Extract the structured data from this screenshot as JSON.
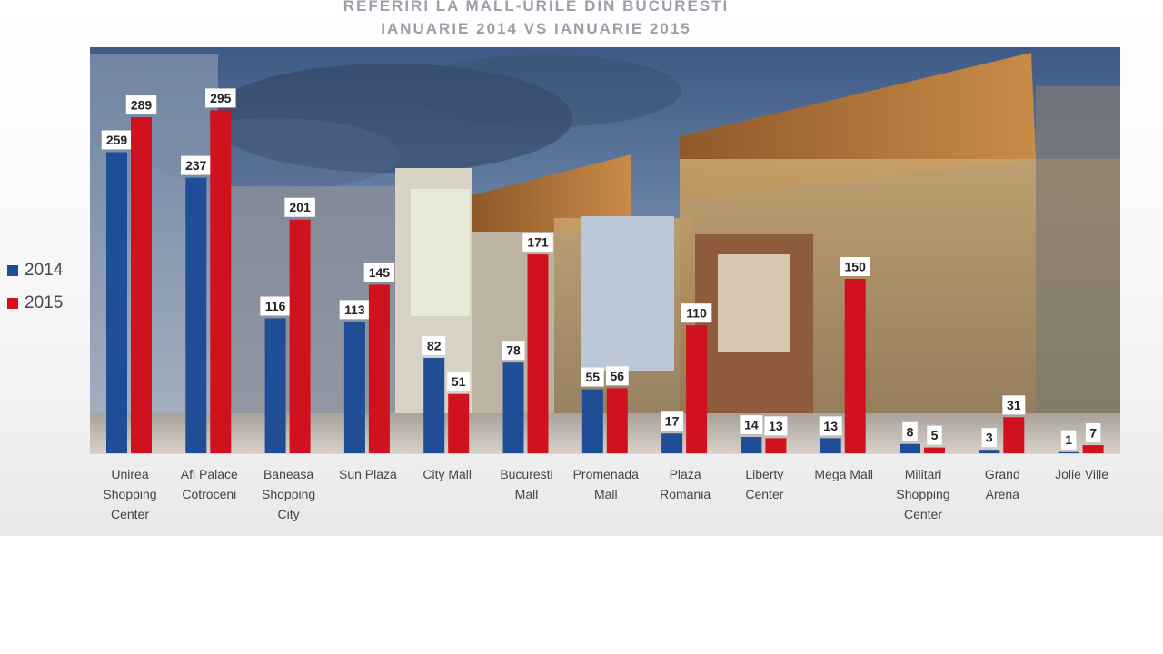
{
  "title_line1": "REFERIRI  LA MALL-URILE  DIN BUCURESTI",
  "title_line2": "IANUARIE  2014 VS IANUARIE  2015",
  "colors": {
    "s2014": "#1f4e96",
    "s2015": "#d0121f"
  },
  "chart_data": {
    "type": "bar",
    "title": "REFERIRI  LA MALL-URILE  DIN BUCURESTI IANUARIE  2014 VS IANUARIE  2015",
    "legend_position": "left",
    "categories": [
      [
        "Unirea",
        "Shopping",
        "Center"
      ],
      [
        "Afi Palace",
        "Cotroceni"
      ],
      [
        "Baneasa",
        "Shopping",
        "City"
      ],
      [
        "Sun Plaza"
      ],
      [
        "City Mall"
      ],
      [
        "Bucuresti",
        "Mall"
      ],
      [
        "Promenada",
        "Mall"
      ],
      [
        "Plaza",
        "Romania"
      ],
      [
        "Liberty",
        "Center"
      ],
      [
        "Mega Mall"
      ],
      [
        "Militari",
        "Shopping",
        "Center"
      ],
      [
        "Grand",
        "Arena"
      ],
      [
        "Jolie Ville"
      ]
    ],
    "series": [
      {
        "name": "2014",
        "values": [
          259,
          237,
          116,
          113,
          82,
          78,
          55,
          17,
          14,
          13,
          8,
          3,
          1
        ]
      },
      {
        "name": "2015",
        "values": [
          289,
          295,
          201,
          145,
          51,
          171,
          56,
          110,
          13,
          150,
          5,
          31,
          7
        ]
      }
    ],
    "ylim": [
      0,
      300
    ]
  }
}
